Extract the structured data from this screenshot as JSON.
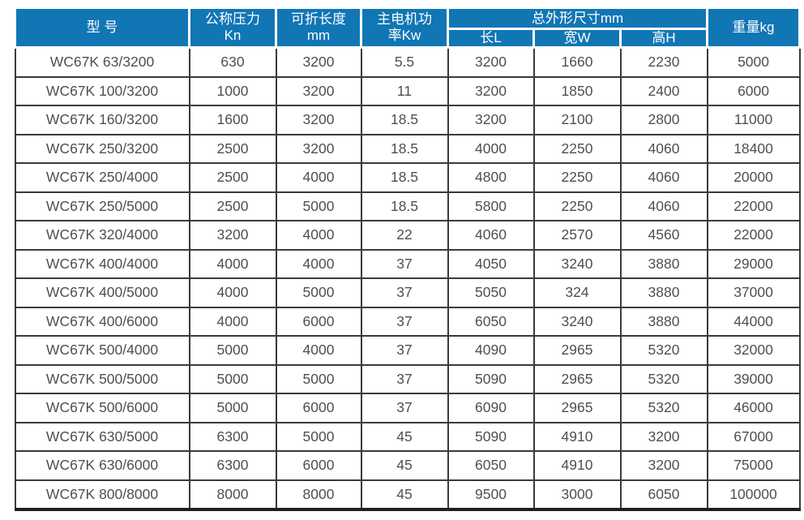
{
  "colors": {
    "header_bg": "#1176b4",
    "header_text": "#ffffff",
    "body_text": "#4e4f51",
    "grid_line": "#3b3b3b"
  },
  "table": {
    "header": {
      "model": "型 号",
      "pressure": [
        "公称压力",
        "Kn"
      ],
      "length": [
        "可折长度",
        "mm"
      ],
      "power": [
        "主电机功",
        "率Kw"
      ],
      "dimensions_group": "总外形尺寸mm",
      "dim_l": "长L",
      "dim_w": "宽W",
      "dim_h": "高H",
      "weight": "重量kg"
    },
    "rows": [
      [
        "WC67K 63/3200",
        "630",
        "3200",
        "5.5",
        "3200",
        "1660",
        "2230",
        "5000"
      ],
      [
        "WC67K 100/3200",
        "1000",
        "3200",
        "11",
        "3200",
        "1850",
        "2400",
        "6000"
      ],
      [
        "WC67K 160/3200",
        "1600",
        "3200",
        "18.5",
        "3200",
        "2100",
        "2800",
        "11000"
      ],
      [
        "WC67K 250/3200",
        "2500",
        "3200",
        "18.5",
        "4000",
        "2250",
        "4060",
        "18400"
      ],
      [
        "WC67K 250/4000",
        "2500",
        "4000",
        "18.5",
        "4800",
        "2250",
        "4060",
        "20000"
      ],
      [
        "WC67K 250/5000",
        "2500",
        "5000",
        "18.5",
        "5800",
        "2250",
        "4060",
        "22000"
      ],
      [
        "WC67K 320/4000",
        "3200",
        "4000",
        "22",
        "4060",
        "2570",
        "4560",
        "22000"
      ],
      [
        "WC67K 400/4000",
        "4000",
        "4000",
        "37",
        "4050",
        "3240",
        "3880",
        "29000"
      ],
      [
        "WC67K 400/5000",
        "4000",
        "5000",
        "37",
        "5050",
        "324",
        "3880",
        "37000"
      ],
      [
        "WC67K 400/6000",
        "4000",
        "6000",
        "37",
        "6050",
        "3240",
        "3880",
        "44000"
      ],
      [
        "WC67K 500/4000",
        "5000",
        "4000",
        "37",
        "4090",
        "2965",
        "5320",
        "32000"
      ],
      [
        "WC67K 500/5000",
        "5000",
        "5000",
        "37",
        "5090",
        "2965",
        "5320",
        "39000"
      ],
      [
        "WC67K 500/6000",
        "5000",
        "6000",
        "37",
        "6090",
        "2965",
        "5320",
        "46000"
      ],
      [
        "WC67K 630/5000",
        "6300",
        "5000",
        "45",
        "5090",
        "4910",
        "3200",
        "67000"
      ],
      [
        "WC67K 630/6000",
        "6300",
        "6000",
        "45",
        "6050",
        "4910",
        "3200",
        "75000"
      ],
      [
        "WC67K 800/8000",
        "8000",
        "8000",
        "45",
        "9500",
        "3000",
        "6050",
        "100000"
      ]
    ]
  }
}
